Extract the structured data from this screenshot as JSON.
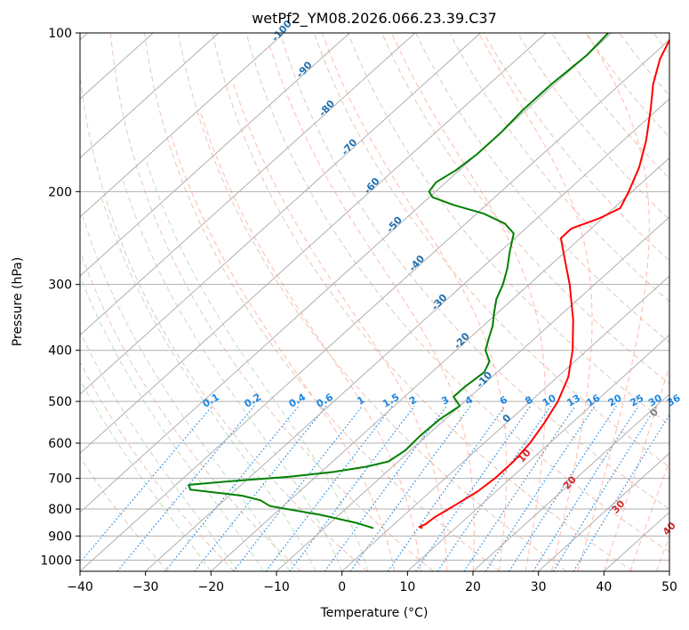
{
  "chart_data": {
    "type": "line",
    "subtype": "skew-t log-p diagram",
    "title": "wetPf2_YM08.2026.066.23.39.C37",
    "xlabel": "Temperature (°C)",
    "ylabel": "Pressure (hPa)",
    "xlim": [
      -40,
      50
    ],
    "ylim": [
      1050,
      100
    ],
    "y_scale": "log",
    "x_ticks": [
      -40,
      -30,
      -20,
      -10,
      0,
      10,
      20,
      30,
      40,
      50
    ],
    "x_tick_labels": [
      "−40",
      "−30",
      "−20",
      "−10",
      "0",
      "10",
      "20",
      "30",
      "40",
      "50"
    ],
    "y_ticks": [
      100,
      200,
      300,
      400,
      500,
      600,
      700,
      800,
      900,
      1000
    ],
    "y_tick_labels": [
      "100",
      "200",
      "300",
      "400",
      "500",
      "600",
      "700",
      "800",
      "900",
      "1000"
    ],
    "grid": true,
    "colors": {
      "temperature": "#ff0000",
      "dewpoint": "#008000",
      "isotherm": "#b0b0b0",
      "dry_adiabat": "#e0b8a8",
      "moist_adiabat": "#ffb3a0",
      "mixing_ratio": "#1e88e5",
      "isotherm_label": "#1f6fb0",
      "mixing_label": "#1e88e5",
      "moist_label": "#d62728",
      "zero_label": "#808080"
    },
    "series": [
      {
        "name": "",
        "color": "#ff0000",
        "points": [
          {
            "p": 870,
            "t": 5.0
          },
          {
            "p": 865,
            "t": 4.3
          },
          {
            "p": 855,
            "t": 4.8
          },
          {
            "p": 830,
            "t": 5.0
          },
          {
            "p": 790,
            "t": 6.0
          },
          {
            "p": 740,
            "t": 7.2
          },
          {
            "p": 700,
            "t": 7.6
          },
          {
            "p": 650,
            "t": 7.6
          },
          {
            "p": 600,
            "t": 7.0
          },
          {
            "p": 550,
            "t": 5.8
          },
          {
            "p": 500,
            "t": 4.2
          },
          {
            "p": 450,
            "t": 1.7
          },
          {
            "p": 400,
            "t": -2.2
          },
          {
            "p": 350,
            "t": -7.3
          },
          {
            "p": 300,
            "t": -13.8
          },
          {
            "p": 270,
            "t": -18.6
          },
          {
            "p": 245,
            "t": -23.0
          },
          {
            "p": 235,
            "t": -23.0
          },
          {
            "p": 225,
            "t": -20.5
          },
          {
            "p": 215,
            "t": -19.0
          },
          {
            "p": 200,
            "t": -20.5
          },
          {
            "p": 180,
            "t": -23.0
          },
          {
            "p": 160,
            "t": -26.5
          },
          {
            "p": 140,
            "t": -31.0
          },
          {
            "p": 125,
            "t": -35.0
          },
          {
            "p": 112,
            "t": -38.2
          },
          {
            "p": 100,
            "t": -40.6
          }
        ]
      },
      {
        "name": "",
        "color": "#008000",
        "points": [
          {
            "p": 870,
            "t": -2.5
          },
          {
            "p": 850,
            "t": -6.0
          },
          {
            "p": 820,
            "t": -13.0
          },
          {
            "p": 790,
            "t": -22.0
          },
          {
            "p": 770,
            "t": -24.5
          },
          {
            "p": 755,
            "t": -28.0
          },
          {
            "p": 735,
            "t": -37.0
          },
          {
            "p": 720,
            "t": -38.0
          },
          {
            "p": 708,
            "t": -32.0
          },
          {
            "p": 695,
            "t": -24.0
          },
          {
            "p": 680,
            "t": -18.0
          },
          {
            "p": 665,
            "t": -14.0
          },
          {
            "p": 650,
            "t": -11.5
          },
          {
            "p": 620,
            "t": -10.8
          },
          {
            "p": 580,
            "t": -11.0
          },
          {
            "p": 540,
            "t": -10.8
          },
          {
            "p": 510,
            "t": -10.0
          },
          {
            "p": 490,
            "t": -12.5
          },
          {
            "p": 470,
            "t": -12.5
          },
          {
            "p": 440,
            "t": -12.0
          },
          {
            "p": 420,
            "t": -13.0
          },
          {
            "p": 400,
            "t": -15.5
          },
          {
            "p": 380,
            "t": -17.0
          },
          {
            "p": 360,
            "t": -18.5
          },
          {
            "p": 340,
            "t": -20.5
          },
          {
            "p": 320,
            "t": -22.5
          },
          {
            "p": 300,
            "t": -24.0
          },
          {
            "p": 280,
            "t": -26.0
          },
          {
            "p": 260,
            "t": -28.5
          },
          {
            "p": 240,
            "t": -31.0
          },
          {
            "p": 230,
            "t": -34.0
          },
          {
            "p": 220,
            "t": -39.0
          },
          {
            "p": 212,
            "t": -45.0
          },
          {
            "p": 205,
            "t": -49.5
          },
          {
            "p": 200,
            "t": -51.0
          },
          {
            "p": 192,
            "t": -51.5
          },
          {
            "p": 182,
            "t": -50.5
          },
          {
            "p": 170,
            "t": -50.0
          },
          {
            "p": 155,
            "t": -50.0
          },
          {
            "p": 140,
            "t": -50.5
          },
          {
            "p": 125,
            "t": -50.5
          },
          {
            "p": 110,
            "t": -50.0
          },
          {
            "p": 100,
            "t": -50.5
          }
        ]
      }
    ],
    "isotherm_labels": [
      {
        "text": "-100",
        "t": -100
      },
      {
        "text": "-90",
        "t": -90
      },
      {
        "text": "-80",
        "t": -80
      },
      {
        "text": "-70",
        "t": -70
      },
      {
        "text": "-60",
        "t": -60
      },
      {
        "text": "-50",
        "t": -50
      },
      {
        "text": "-40",
        "t": -40
      },
      {
        "text": "-30",
        "t": -30
      },
      {
        "text": "-20",
        "t": -20
      },
      {
        "text": "-10",
        "t": -10
      },
      {
        "text": "0",
        "t": 0
      }
    ],
    "mixing_ratio_labels": [
      "0.1",
      "0.2",
      "0.4",
      "0.6",
      "1",
      "1.5",
      "2",
      "3",
      "4",
      "6",
      "8",
      "10",
      "13",
      "16",
      "20",
      "25",
      "30",
      "36"
    ],
    "moist_adiabat_labels": [
      "10",
      "20",
      "30",
      "40"
    ],
    "mixing_ratio_values_g_per_kg": [
      0.1,
      0.2,
      0.4,
      0.6,
      1,
      1.5,
      2,
      3,
      4,
      6,
      8,
      10,
      13,
      16,
      20,
      25,
      30,
      36
    ]
  }
}
